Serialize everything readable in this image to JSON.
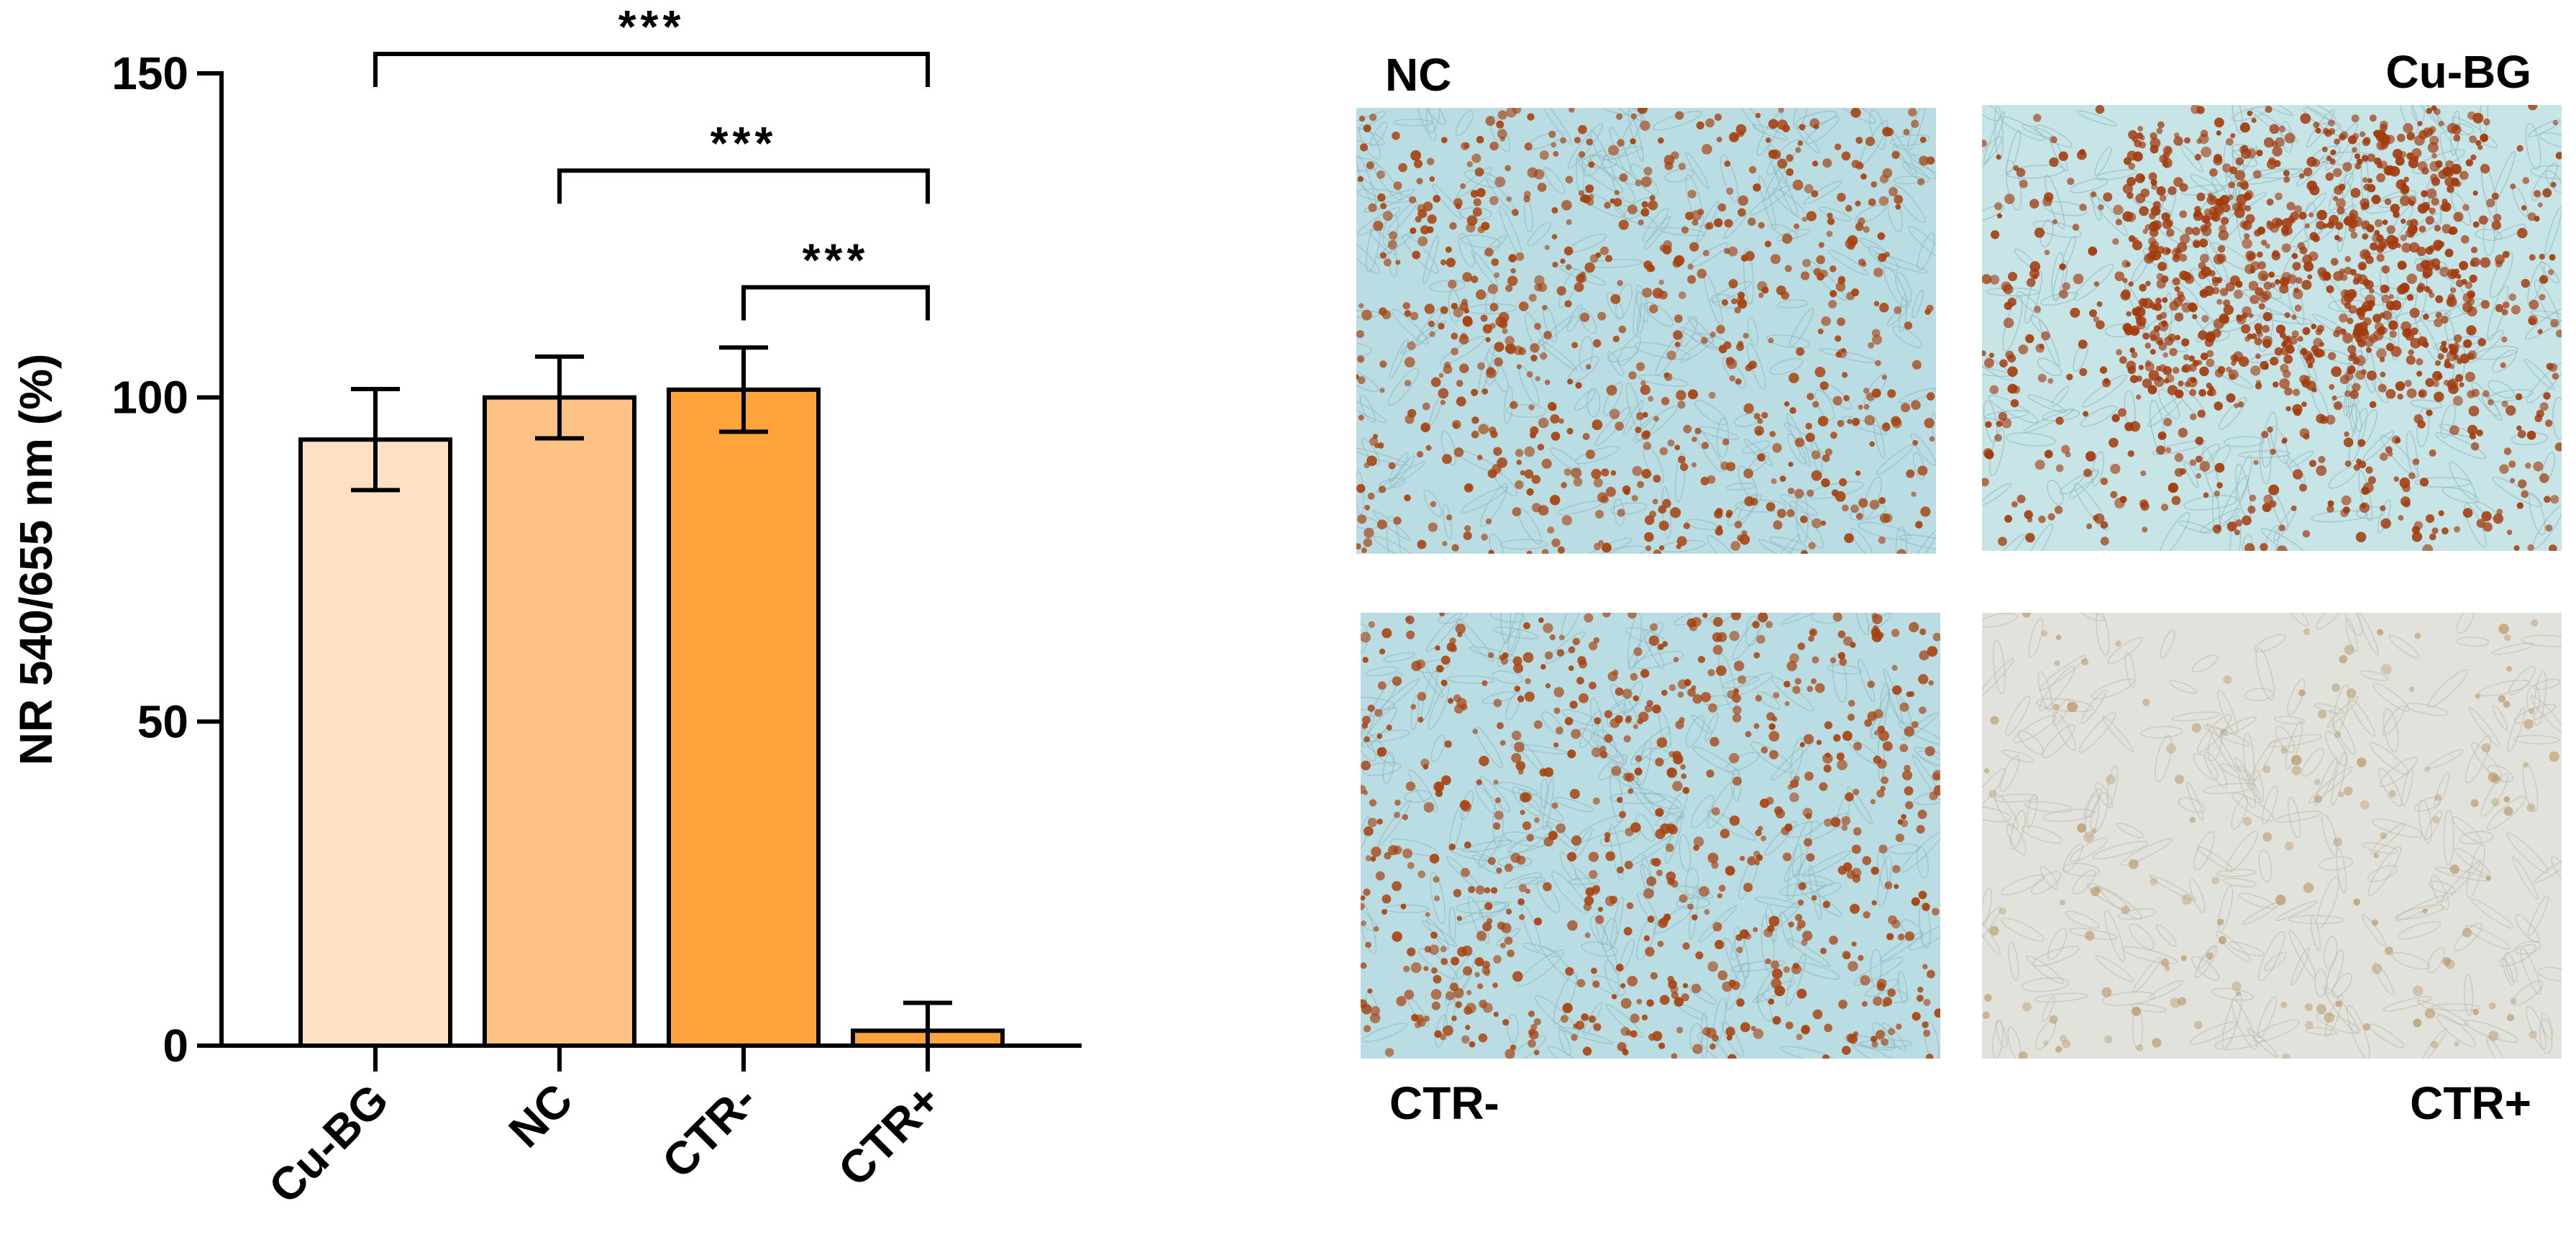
{
  "chart_data": {
    "type": "bar",
    "title": "",
    "xlabel": "",
    "ylabel": "NR 540/655 nm (%)",
    "ylim": [
      0,
      150
    ],
    "yticks": [
      0,
      50,
      100,
      150
    ],
    "categories": [
      "Cu-BG",
      "NC",
      "CTR-",
      "CTR+"
    ],
    "values": [
      93.5,
      100,
      101.2,
      2.3
    ],
    "errors": [
      7.8,
      6.3,
      6.5,
      4.3
    ],
    "bar_colors": [
      "#FFE1C4",
      "#FFC184",
      "#FFA33A",
      "#FFA33A"
    ],
    "significance": [
      {
        "from": "Cu-BG",
        "to": "CTR+",
        "label": "***",
        "y": 153
      },
      {
        "from": "NC",
        "to": "CTR+",
        "label": "***",
        "y": 135
      },
      {
        "from": "CTR-",
        "to": "CTR+",
        "label": "***",
        "y": 117
      }
    ]
  },
  "panels": [
    {
      "key": "nc",
      "label": "NC",
      "label_align": "left",
      "stain": "#a8420f",
      "density": "high",
      "background": "#b9dde3"
    },
    {
      "key": "cubg",
      "label": "Cu-BG",
      "label_align": "right",
      "stain": "#a33a0c",
      "density": "very-high",
      "background": "#c7e4e7"
    },
    {
      "key": "ctrm",
      "label": "CTR-",
      "label_align": "left",
      "stain": "#a8420f",
      "density": "high",
      "background": "#b9dde3"
    },
    {
      "key": "ctrp",
      "label": "CTR+",
      "label_align": "right",
      "stain": "#b6925f",
      "density": "low",
      "background": "#e2e2dc"
    }
  ]
}
